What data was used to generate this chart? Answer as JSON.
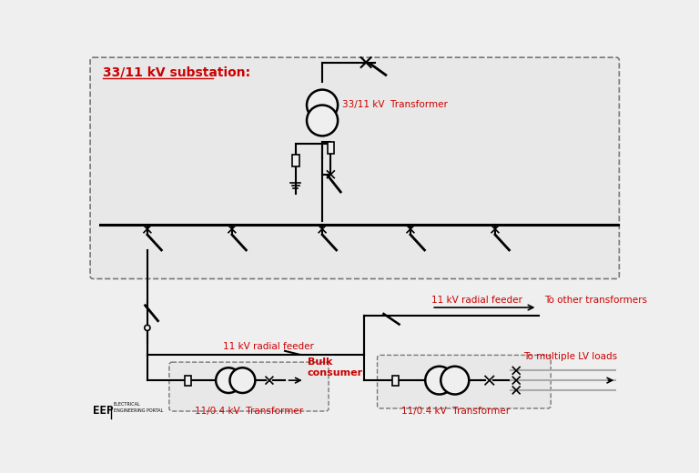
{
  "bg_color": "#efefef",
  "line_color": "#000000",
  "red_color": "#cc0000",
  "gray_color": "#aaaaaa",
  "title_text": "33/11 kV substation:",
  "substation_label": "33/11 kV  Transformer",
  "feeder_label_left": "11 kV radial feeder",
  "feeder_label_right": "11 kV radial feeder",
  "to_other": "To other transformers",
  "to_lv": "To multiple LV loads",
  "bulk_consumer": "Bulk\nconsumer",
  "lv_transformer_label1": "11/0.4 kV  Transformer",
  "lv_transformer_label2": "11/0.4 kV  Transformer"
}
